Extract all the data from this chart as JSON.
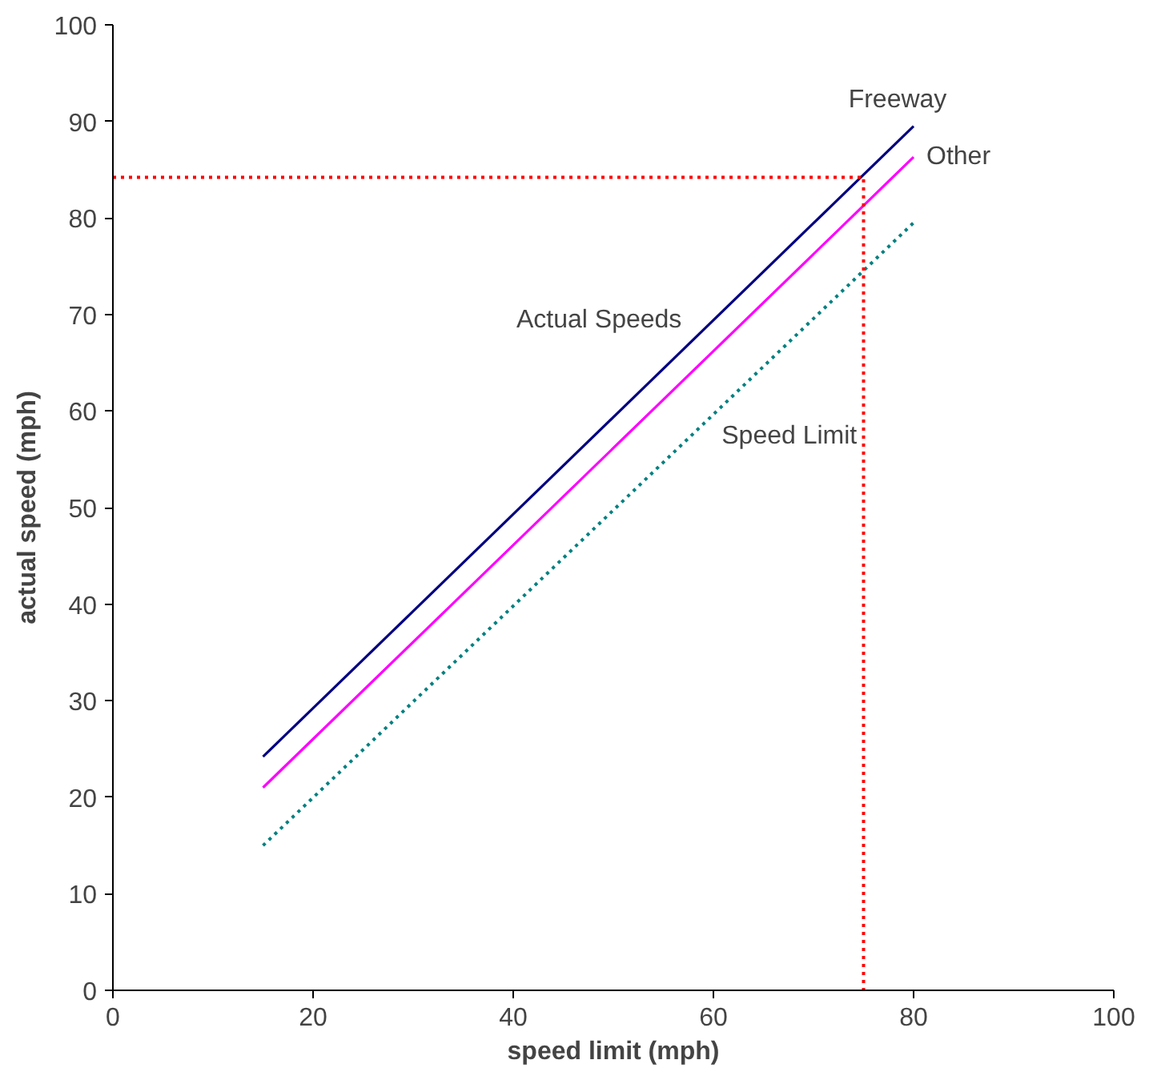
{
  "chart_data": {
    "type": "line",
    "xlabel": "speed limit (mph)",
    "ylabel": "actual speed (mph)",
    "xlim": [
      0,
      100
    ],
    "ylim": [
      0,
      100
    ],
    "xticks": [
      0,
      20,
      40,
      60,
      80,
      100
    ],
    "yticks": [
      0,
      10,
      20,
      30,
      40,
      50,
      60,
      70,
      80,
      90,
      100
    ],
    "grid": false,
    "marker": "none",
    "series": [
      {
        "name": "Freeway",
        "color": "#000080",
        "x": [
          15,
          80
        ],
        "values": [
          24.2,
          89.5
        ],
        "line_style": "solid"
      },
      {
        "name": "Other",
        "color": "#ff00ff",
        "x": [
          15,
          80
        ],
        "values": [
          21,
          86.3
        ],
        "line_style": "solid"
      },
      {
        "name": "Speed Limit",
        "color": "#008080",
        "x": [
          15,
          80
        ],
        "values": [
          15,
          79.5
        ],
        "line_style": "dotted"
      },
      {
        "color": "#ff0000",
        "x": [
          0,
          75,
          75
        ],
        "values": [
          84.2,
          84.2,
          0
        ],
        "line_style": "dotted"
      }
    ],
    "annotations": [
      "Actual Speeds"
    ]
  }
}
